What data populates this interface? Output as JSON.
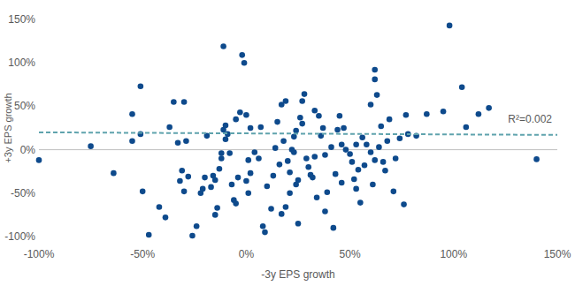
{
  "chart_data": {
    "type": "scatter",
    "xlabel": "-3y EPS growth",
    "ylabel": "+3y EPS growth",
    "color": "#0e4a8c",
    "marker": "circle",
    "x": [
      -100,
      -75,
      -64,
      -55,
      -55,
      -51,
      -51,
      -50,
      -47,
      -42,
      -39,
      -37,
      -35,
      -33,
      -32,
      -31,
      -30,
      -30,
      -29,
      -28,
      -26,
      -24,
      -22,
      -21,
      -20,
      -19,
      -17,
      -16,
      -15,
      -15,
      -14,
      -13,
      -12,
      -12,
      -11,
      -11,
      -10,
      -10,
      -9,
      -8,
      -7,
      -6,
      -5,
      -5,
      -4,
      -3,
      -2,
      -1,
      0,
      0,
      1,
      1,
      2,
      2,
      4,
      6,
      7,
      8,
      9,
      10,
      12,
      13,
      14,
      15,
      16,
      17,
      17,
      18,
      19,
      19,
      20,
      21,
      21,
      22,
      23,
      23,
      24,
      24,
      25,
      25,
      26,
      27,
      27,
      28,
      29,
      30,
      31,
      32,
      33,
      33,
      34,
      35,
      36,
      37,
      38,
      38,
      39,
      41,
      42,
      43,
      44,
      45,
      46,
      46,
      47,
      48,
      50,
      51,
      52,
      53,
      53,
      54,
      55,
      56,
      57,
      58,
      60,
      60,
      61,
      62,
      62,
      62,
      63,
      64,
      65,
      66,
      67,
      68,
      69,
      71,
      72,
      74,
      76,
      77,
      78,
      82,
      87,
      95,
      98,
      104,
      106,
      112,
      117,
      140
    ],
    "values": [
      -12,
      4,
      -27,
      10,
      41,
      73,
      18,
      -48,
      -98,
      -66,
      -78,
      26,
      55,
      8,
      -36,
      -24,
      -48,
      55,
      10,
      -31,
      -99,
      -88,
      -50,
      -45,
      -32,
      16,
      -43,
      -30,
      -35,
      -75,
      -67,
      -22,
      -4,
      -10,
      23,
      119,
      28,
      12,
      18,
      -4,
      -40,
      -58,
      -62,
      35,
      -32,
      43,
      109,
      100,
      -36,
      40,
      -50,
      -12,
      25,
      -27,
      -3,
      -10,
      26,
      -88,
      -95,
      -42,
      -68,
      -30,
      2,
      32,
      -17,
      52,
      -74,
      10,
      -66,
      56,
      -13,
      -50,
      -26,
      0,
      -3,
      15,
      22,
      -40,
      -85,
      -35,
      37,
      30,
      56,
      64,
      -10,
      -20,
      -29,
      -32,
      -8,
      45,
      -55,
      39,
      16,
      25,
      -71,
      -6,
      -49,
      3,
      -90,
      -28,
      23,
      39,
      6,
      -38,
      25,
      0,
      -5,
      -14,
      -34,
      6,
      -45,
      -23,
      -61,
      14,
      -18,
      6,
      -3,
      52,
      -40,
      -12,
      81,
      92,
      63,
      3,
      27,
      -14,
      -24,
      10,
      35,
      -48,
      -10,
      13,
      -63,
      40,
      18,
      16,
      41,
      44,
      143,
      72,
      26,
      41,
      48,
      -11
    ],
    "trendline": {
      "x": [
        -100,
        150
      ],
      "values": [
        20,
        17
      ],
      "color": "#5fa3ad",
      "line_style": "dashed"
    },
    "annotation": "R²=0.002",
    "xlim": [
      -100,
      150
    ],
    "ylim": [
      -100,
      150
    ],
    "xticks": [
      {
        "value": -100,
        "label": "-100%"
      },
      {
        "value": -50,
        "label": "-50%"
      },
      {
        "value": 0,
        "label": "0%"
      },
      {
        "value": 50,
        "label": "50%"
      },
      {
        "value": 100,
        "label": "100%"
      },
      {
        "value": 150,
        "label": "150%"
      }
    ],
    "yticks": [
      {
        "value": -100,
        "label": "-100%"
      },
      {
        "value": -50,
        "label": "-50%"
      },
      {
        "value": 0,
        "label": "0%"
      },
      {
        "value": 50,
        "label": "50%"
      },
      {
        "value": 100,
        "label": "100%"
      },
      {
        "value": 150,
        "label": "150%"
      }
    ],
    "grid": false
  }
}
